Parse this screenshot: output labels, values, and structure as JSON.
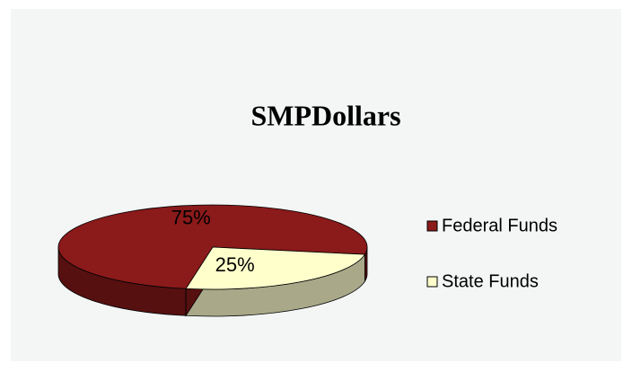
{
  "chart_data": {
    "type": "pie",
    "title": "SMPDollars",
    "categories": [
      "Federal Funds",
      "State Funds"
    ],
    "values": [
      75,
      25
    ],
    "value_labels": [
      "75%",
      "25%"
    ],
    "colors": [
      "#8b1a1a",
      "#ffffcc"
    ],
    "legend": "right"
  }
}
